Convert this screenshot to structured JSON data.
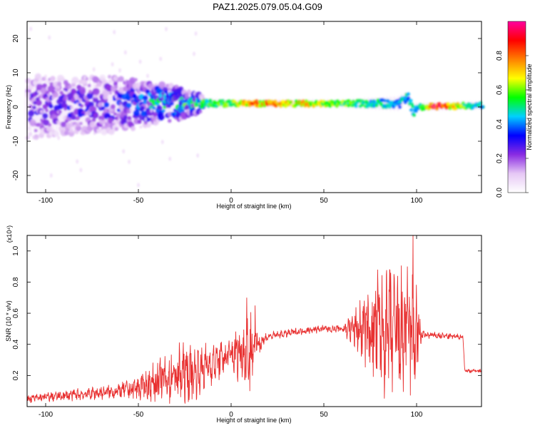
{
  "title": "PAZ1.2025.079.05.04.G09",
  "chart_data": [
    {
      "type": "heatmap",
      "xlabel": "Height of straight line (km)",
      "ylabel": "Frequency (Hz)",
      "xlim": [
        -110,
        135
      ],
      "ylim": [
        -25,
        25
      ],
      "xticks": [
        -100,
        -50,
        0,
        50,
        100
      ],
      "yticks": [
        -20,
        -10,
        0,
        10,
        20
      ],
      "colorbar": {
        "label": "Normalized spectral amplitude",
        "range": [
          0.0,
          1.0
        ],
        "ticks": [
          "0.0",
          "0.2",
          "0.4",
          "0.6",
          "0.8"
        ],
        "colors": [
          "#ffffff",
          "#e6c8f5",
          "#8a2be2",
          "#0000ff",
          "#00d0ff",
          "#00ff00",
          "#ffff00",
          "#ff8000",
          "#ff0000",
          "#ff00a0"
        ]
      },
      "ridge_center_hz": [
        [
          -110,
          0.0
        ],
        [
          -80,
          0.5
        ],
        [
          -50,
          1.0
        ],
        [
          -20,
          1.0
        ],
        [
          0,
          1.0
        ],
        [
          50,
          1.0
        ],
        [
          90,
          1.0
        ],
        [
          95,
          3.0
        ],
        [
          98,
          -1.5
        ],
        [
          100,
          0.0
        ],
        [
          135,
          0.5
        ]
      ],
      "ridge_peak_amplitude": [
        [
          -110,
          0.25
        ],
        [
          -60,
          0.3
        ],
        [
          -40,
          0.45
        ],
        [
          -20,
          0.5
        ],
        [
          -10,
          0.6
        ],
        [
          0,
          0.6
        ],
        [
          10,
          0.8
        ],
        [
          30,
          0.75
        ],
        [
          60,
          0.6
        ],
        [
          90,
          0.45
        ],
        [
          100,
          0.5
        ],
        [
          110,
          0.95
        ],
        [
          125,
          0.6
        ],
        [
          135,
          0.5
        ]
      ],
      "ridge_spread_hz": [
        [
          -110,
          9
        ],
        [
          -60,
          8
        ],
        [
          -30,
          5
        ],
        [
          -15,
          2
        ],
        [
          0,
          1.5
        ],
        [
          60,
          1.5
        ],
        [
          90,
          2.5
        ],
        [
          100,
          1.5
        ],
        [
          135,
          1.5
        ]
      ]
    },
    {
      "type": "line",
      "xlabel": "Height of straight line (km)",
      "ylabel": "SNR (10 * v/v)",
      "yscale_label": "(x10⁴)",
      "xlim": [
        -110,
        135
      ],
      "ylim": [
        0,
        1.1
      ],
      "xticks": [
        -100,
        -50,
        0,
        50,
        100
      ],
      "yticks": [
        0.2,
        0.4,
        0.6,
        0.8,
        1.0
      ],
      "line_color": "#e83030",
      "series": [
        {
          "baseline": [
            [
              -110,
              0.05
            ],
            [
              -100,
              0.06
            ],
            [
              -80,
              0.08
            ],
            [
              -60,
              0.1
            ],
            [
              -50,
              0.12
            ],
            [
              -40,
              0.16
            ],
            [
              -30,
              0.2
            ],
            [
              -20,
              0.22
            ],
            [
              -10,
              0.28
            ],
            [
              0,
              0.33
            ],
            [
              10,
              0.38
            ],
            [
              15,
              0.41
            ],
            [
              20,
              0.45
            ],
            [
              30,
              0.47
            ],
            [
              40,
              0.49
            ],
            [
              50,
              0.5
            ],
            [
              60,
              0.5
            ],
            [
              70,
              0.5
            ],
            [
              80,
              0.48
            ],
            [
              90,
              0.46
            ],
            [
              100,
              0.46
            ],
            [
              105,
              0.46
            ],
            [
              120,
              0.45
            ],
            [
              125,
              0.45
            ],
            [
              126,
              0.23
            ],
            [
              135,
              0.23
            ]
          ],
          "oscillation_amplitude": [
            [
              -110,
              0.02
            ],
            [
              -60,
              0.04
            ],
            [
              -45,
              0.08
            ],
            [
              -30,
              0.16
            ],
            [
              -20,
              0.14
            ],
            [
              -10,
              0.1
            ],
            [
              0,
              0.1
            ],
            [
              5,
              0.15
            ],
            [
              10,
              0.2
            ],
            [
              15,
              0.06
            ],
            [
              20,
              0.02
            ],
            [
              60,
              0.02
            ],
            [
              70,
              0.15
            ],
            [
              80,
              0.3
            ],
            [
              90,
              0.35
            ],
            [
              100,
              0.3
            ],
            [
              103,
              0.02
            ],
            [
              135,
              0.01
            ]
          ],
          "spikes": [
            [
              8.5,
              0.7
            ],
            [
              10,
              0.1
            ],
            [
              13,
              0.65
            ],
            [
              79,
              0.88
            ],
            [
              86,
              0.86
            ],
            [
              95,
              0.9
            ],
            [
              98,
              1.12
            ]
          ]
        }
      ]
    }
  ]
}
